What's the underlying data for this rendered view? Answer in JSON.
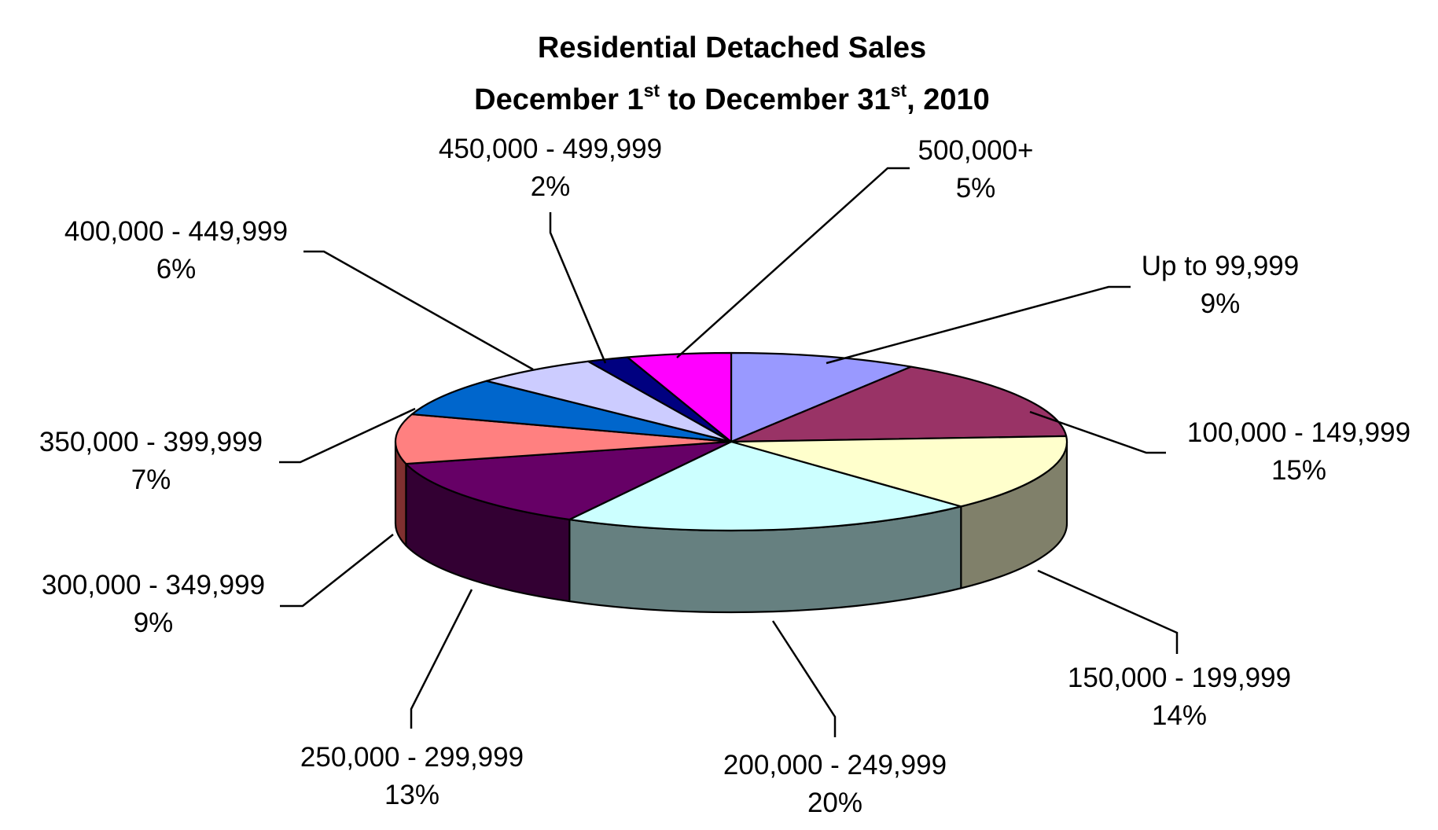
{
  "chart_data": {
    "type": "pie",
    "title": "Residential Detached Sales",
    "subtitle": {
      "month_a": "December",
      "day_a": "1",
      "suffix_a": "st",
      "connector": "to",
      "month_b": "December",
      "day_b": "31",
      "suffix_b": "st",
      "year": ", 2010"
    },
    "three_d": true,
    "slices": [
      {
        "label": "Up to 99,999",
        "percent": "9%",
        "value": 9,
        "color": "#9999FF",
        "side_color": "#6B6BB3"
      },
      {
        "label": "100,000 - 149,999",
        "percent": "15%",
        "value": 15,
        "color": "#993366",
        "side_color": "#6B2447"
      },
      {
        "label": "150,000 - 199,999",
        "percent": "14%",
        "value": 14,
        "color": "#FFFFCC",
        "side_color": "#80806A"
      },
      {
        "label": "200,000 - 249,999",
        "percent": "20%",
        "value": 20,
        "color": "#CCFFFF",
        "side_color": "#668080"
      },
      {
        "label": "250,000 - 299,999",
        "percent": "13%",
        "value": 13,
        "color": "#660066",
        "side_color": "#330033"
      },
      {
        "label": "300,000 - 349,999",
        "percent": "9%",
        "value": 9,
        "color": "#FF8080",
        "side_color": "#803030"
      },
      {
        "label": "350,000 - 399,999",
        "percent": "7%",
        "value": 7,
        "color": "#0066CC",
        "side_color": "#003366"
      },
      {
        "label": "400,000 - 449,999",
        "percent": "6%",
        "value": 6,
        "color": "#CCCCFF",
        "side_color": "#8888AA"
      },
      {
        "label": "450,000 - 499,999",
        "percent": "2%",
        "value": 2,
        "color": "#000080",
        "side_color": "#000040"
      },
      {
        "label": "500,000+",
        "percent": "5%",
        "value": 5,
        "color": "#FF00FF",
        "side_color": "#800080"
      }
    ]
  }
}
